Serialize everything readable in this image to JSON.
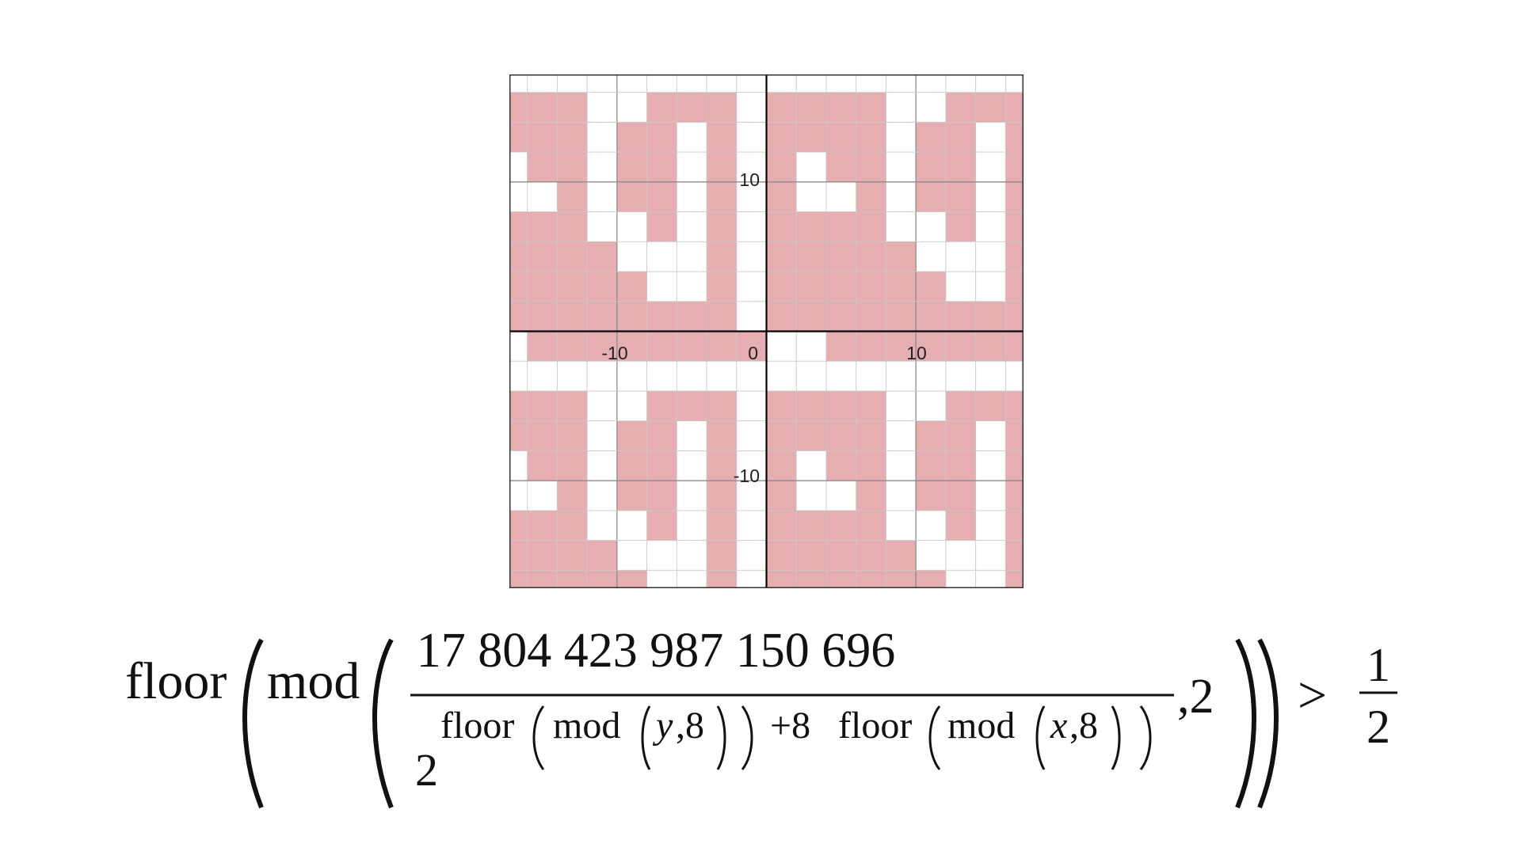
{
  "graph": {
    "x_range": [
      -21.5,
      21.5
    ],
    "y_range": [
      -21.5,
      21.5
    ],
    "grid_step": 2.5,
    "major_step": 12.5,
    "fill_color": "#e6aeb0",
    "grid_color": "#c8c8c8",
    "major_grid_color": "#8c8c8c",
    "axis_color": "#000000",
    "border_color": "#333333",
    "tile_size": 10,
    "tile_pattern": [
      "0011111111",
      "0000000000",
      "1111001110",
      "1111011010",
      "1011011010",
      "1001011010",
      "1111001010",
      "1111100010",
      "1111110010",
      "1111111110"
    ],
    "ticks": {
      "x_neg": "-10",
      "x_pos": "10",
      "origin": "0",
      "y_pos": "10",
      "y_neg": "-10"
    }
  },
  "formula": {
    "floor": "floor",
    "mod": "mod",
    "numerator": "17 804 423 987 150 696",
    "base": "2",
    "exponent": {
      "floor1": "floor",
      "mod1": "mod",
      "y": "y",
      "comma8": ",8",
      "plus8": "+8",
      "floor2": "floor",
      "mod2": "mod",
      "x": "x"
    },
    "comma2": ",2",
    "gt": ">",
    "rhs_num": "1",
    "rhs_den": "2"
  }
}
